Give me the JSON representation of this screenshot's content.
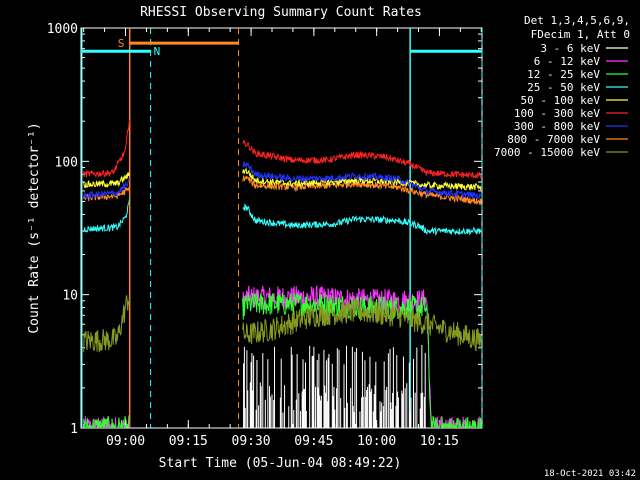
{
  "chart_data": {
    "type": "line",
    "title": "RHESSI Observing Summary Count Rates",
    "xlabel": "Start Time (05-Jun-04 08:49:22)",
    "ylabel": "Count Rate (s⁻¹ detector⁻¹)",
    "y_scale": "log",
    "ylim": [
      1,
      1000
    ],
    "xlim": [
      "08:49:22",
      "10:25:10"
    ],
    "x_ticks": [
      "09:00",
      "09:15",
      "09:30",
      "09:45",
      "10:00",
      "10:15"
    ],
    "y_ticks": [
      "1",
      "10",
      "100",
      "1000"
    ],
    "legend": {
      "placement": "right",
      "header": [
        "Det 1,3,4,5,6,9,",
        "FDecim 1, Att 0"
      ]
    },
    "series": [
      {
        "name": "3 - 6 keV",
        "color": "#ffffff",
        "points": [
          [
            "09:00",
            0
          ],
          [
            "09:01",
            0
          ],
          [
            "09:29",
            0
          ],
          [
            "10:12",
            0
          ]
        ]
      },
      {
        "name": "6 - 12 keV",
        "color": "#ff33ff",
        "points": [
          [
            "08:50",
            1
          ],
          [
            "09:01",
            1
          ],
          [
            "09:29",
            9.5
          ],
          [
            "09:45",
            9.5
          ],
          [
            "10:00",
            9
          ],
          [
            "10:12",
            9
          ],
          [
            "10:13",
            1
          ],
          [
            "10:25",
            1
          ]
        ]
      },
      {
        "name": "12 - 25 keV",
        "color": "#33ff33",
        "points": [
          [
            "08:50",
            1
          ],
          [
            "09:01",
            1
          ],
          [
            "09:29",
            8.5
          ],
          [
            "09:45",
            8.5
          ],
          [
            "10:00",
            8
          ],
          [
            "10:12",
            8
          ],
          [
            "10:13",
            1
          ],
          [
            "10:25",
            1
          ]
        ]
      },
      {
        "name": "25 - 50 keV",
        "color": "#33ffff",
        "points": [
          [
            "08:50",
            31
          ],
          [
            "08:58",
            32
          ],
          [
            "09:00",
            38
          ],
          [
            "09:01",
            50
          ],
          [
            "09:29",
            45
          ],
          [
            "09:31",
            36
          ],
          [
            "09:40",
            33
          ],
          [
            "09:50",
            34
          ],
          [
            "09:55",
            37
          ],
          [
            "10:05",
            36
          ],
          [
            "10:10",
            33
          ],
          [
            "10:12",
            30
          ],
          [
            "10:25",
            30
          ]
        ]
      },
      {
        "name": "50 - 100 keV",
        "color": "#ffff33",
        "points": [
          [
            "08:50",
            67
          ],
          [
            "08:58",
            68
          ],
          [
            "09:01",
            80
          ],
          [
            "09:29",
            85
          ],
          [
            "09:31",
            72
          ],
          [
            "09:40",
            68
          ],
          [
            "09:50",
            70
          ],
          [
            "09:55",
            72
          ],
          [
            "10:05",
            70
          ],
          [
            "10:12",
            66
          ],
          [
            "10:25",
            64
          ]
        ]
      },
      {
        "name": "100 - 300 keV",
        "color": "#ff2222",
        "points": [
          [
            "08:50",
            80
          ],
          [
            "08:57",
            82
          ],
          [
            "09:00",
            120
          ],
          [
            "09:01",
            220
          ],
          [
            "09:29",
            135
          ],
          [
            "09:31",
            115
          ],
          [
            "09:40",
            102
          ],
          [
            "09:48",
            102
          ],
          [
            "09:55",
            112
          ],
          [
            "10:02",
            108
          ],
          [
            "10:08",
            95
          ],
          [
            "10:12",
            82
          ],
          [
            "10:25",
            78
          ]
        ]
      },
      {
        "name": "300 - 800 keV",
        "color": "#2233ff",
        "points": [
          [
            "08:50",
            55
          ],
          [
            "08:58",
            58
          ],
          [
            "09:01",
            70
          ],
          [
            "09:29",
            95
          ],
          [
            "09:31",
            80
          ],
          [
            "09:40",
            74
          ],
          [
            "09:50",
            75
          ],
          [
            "09:55",
            78
          ],
          [
            "10:05",
            74
          ],
          [
            "10:12",
            60
          ],
          [
            "10:25",
            55
          ]
        ]
      },
      {
        "name": "800 - 7000 keV",
        "color": "#ff8822",
        "points": [
          [
            "08:50",
            53
          ],
          [
            "08:58",
            55
          ],
          [
            "09:01",
            62
          ],
          [
            "09:29",
            75
          ],
          [
            "09:31",
            66
          ],
          [
            "09:40",
            64
          ],
          [
            "09:50",
            66
          ],
          [
            "09:55",
            68
          ],
          [
            "10:05",
            64
          ],
          [
            "10:12",
            56
          ],
          [
            "10:25",
            50
          ]
        ]
      },
      {
        "name": "7000 - 15000 keV",
        "color": "#889922",
        "points": [
          [
            "08:50",
            4.5
          ],
          [
            "08:58",
            4.6
          ],
          [
            "09:00",
            8
          ],
          [
            "09:01",
            10
          ],
          [
            "09:29",
            5
          ],
          [
            "09:35",
            5.5
          ],
          [
            "09:45",
            7
          ],
          [
            "09:55",
            7.5
          ],
          [
            "10:05",
            7
          ],
          [
            "10:12",
            6
          ],
          [
            "10:25",
            4.5
          ]
        ]
      }
    ],
    "annotations": [
      {
        "label": "S",
        "color": "#ff8822",
        "x_start": "09:01",
        "x_end": "09:27",
        "y_level": 770
      },
      {
        "label": "N",
        "color": "#33ffff",
        "segments": [
          [
            "08:49:22",
            "09:06"
          ],
          [
            "10:08",
            "10:25:10"
          ]
        ],
        "y_level": 670
      }
    ],
    "vlines_solid": [
      {
        "x": "09:01",
        "color": "#ff8822"
      },
      {
        "x": "10:08",
        "color": "#33ffff"
      }
    ],
    "vlines_dashed": [
      {
        "x": "09:06",
        "color": "#33ffff"
      },
      {
        "x": "09:27",
        "color": "#ff8822"
      },
      {
        "x": "10:25:10",
        "color": "#33ffff"
      }
    ],
    "gaps": [
      [
        "09:01",
        "09:28"
      ]
    ]
  },
  "footer": {
    "date_stamp": "18-Oct-2021 03:42"
  }
}
